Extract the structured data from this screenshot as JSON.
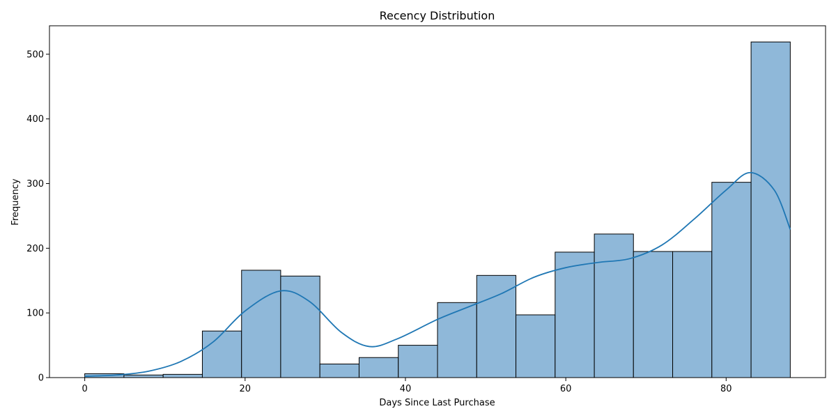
{
  "chart_data": {
    "type": "bar",
    "title": "Recency Distribution",
    "xlabel": "Days Since Last Purchase",
    "ylabel": "Frequency",
    "xlim": [
      -4.4,
      92.4
    ],
    "ylim": [
      0,
      544
    ],
    "xticks": [
      0,
      20,
      40,
      60,
      80
    ],
    "yticks": [
      0,
      100,
      200,
      300,
      400,
      500
    ],
    "grid": false,
    "bin_edges": [
      0,
      4.89,
      9.78,
      14.67,
      19.56,
      24.44,
      29.33,
      34.22,
      39.11,
      44,
      48.89,
      53.78,
      58.67,
      63.56,
      68.44,
      73.33,
      78.22,
      83.11,
      88
    ],
    "values": [
      6,
      4,
      5,
      72,
      166,
      157,
      21,
      31,
      50,
      116,
      158,
      97,
      194,
      222,
      195,
      195,
      302,
      519
    ],
    "kde": {
      "x": [
        0,
        4,
        8,
        12,
        16,
        20,
        24.4,
        28,
        32,
        35.5,
        39,
        44,
        48,
        52,
        56,
        60,
        64,
        68,
        72,
        76,
        80,
        83,
        86,
        88
      ],
      "y": [
        2,
        4,
        10,
        25,
        55,
        103,
        134,
        118,
        70,
        48,
        60,
        90,
        110,
        130,
        155,
        170,
        178,
        184,
        205,
        245,
        290,
        317,
        290,
        229
      ]
    },
    "colors": {
      "bar_fill": "#8fb8d9",
      "bar_edge": "#000000",
      "kde_line": "#1f77b4"
    }
  }
}
